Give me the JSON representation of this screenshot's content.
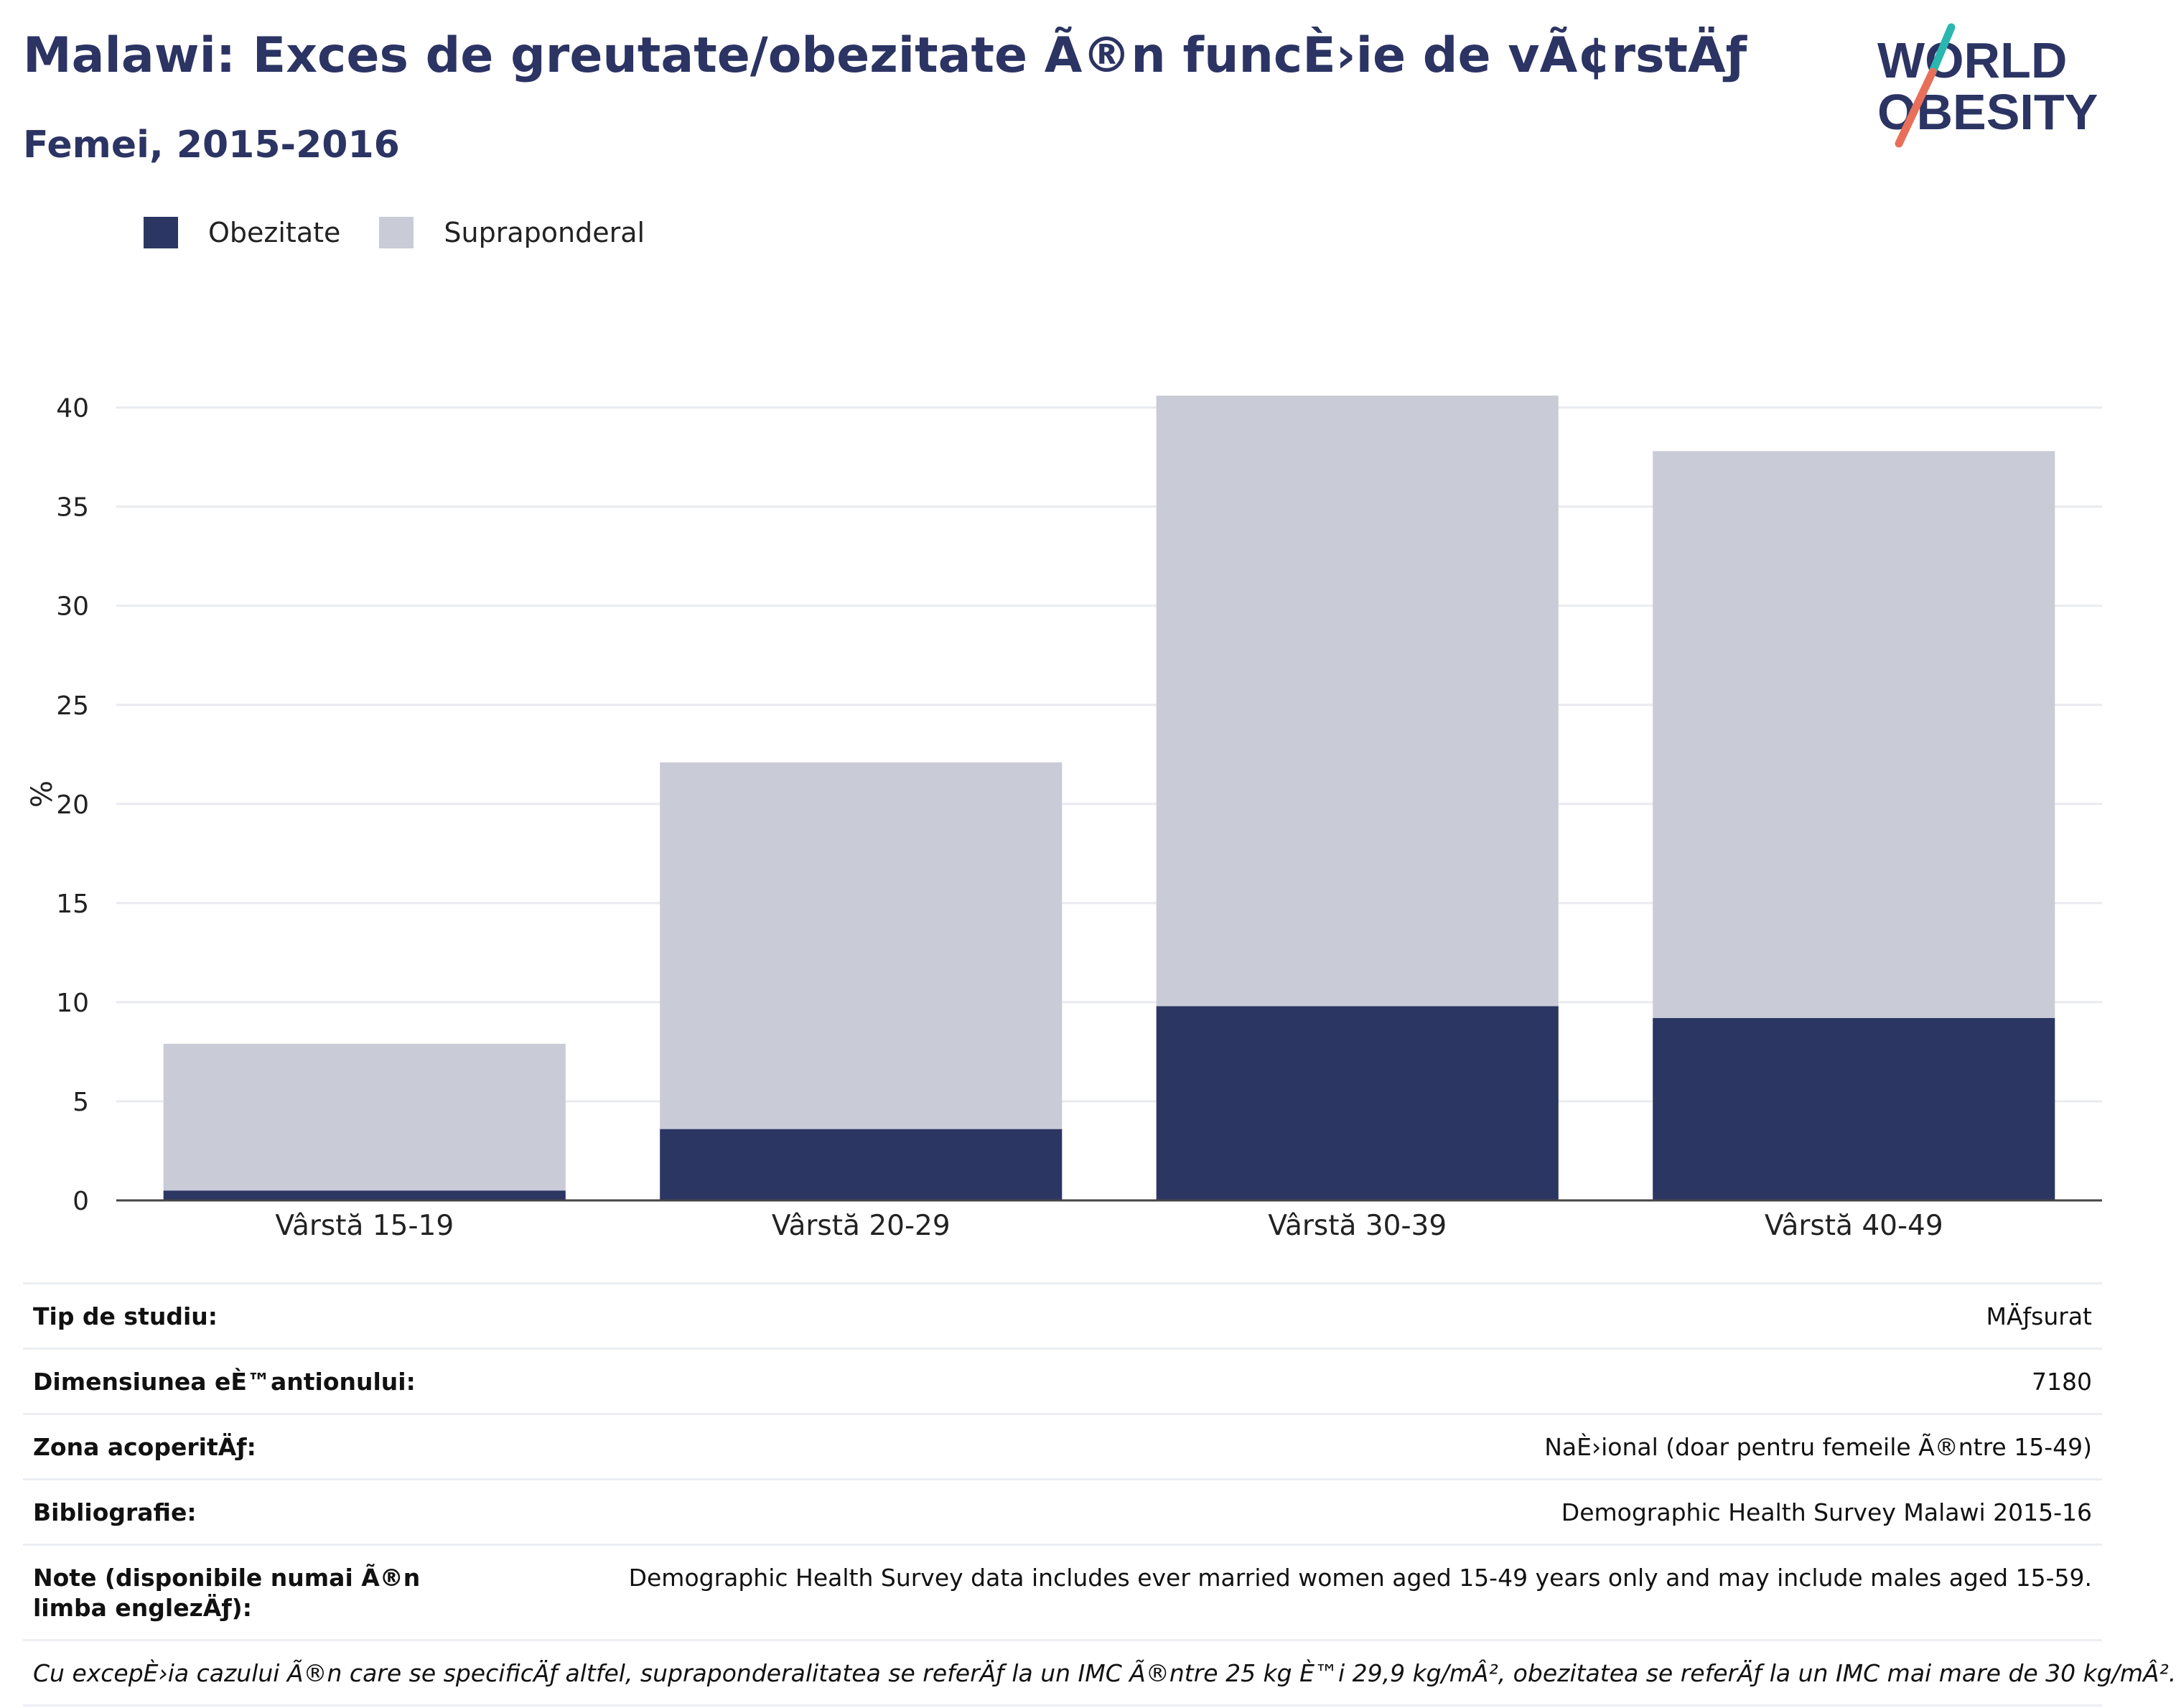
{
  "header": {
    "title": "Malawi: Exces de greutate/obezitate Ã®n funcÈ›ie de vÃ¢rstÄƒ",
    "subtitle": "Femei, 2015-2016"
  },
  "logo": {
    "line1": "WORLD",
    "line2": "OBESITY",
    "accent_colors": [
      "#2ab7b0",
      "#e8705a"
    ]
  },
  "colors": {
    "obesity": "#2b3663",
    "overweight": "#c9ccd7",
    "title": "#2b3463"
  },
  "chart_data": {
    "type": "bar",
    "stacked": true,
    "categories": [
      "Vârstă 15-19",
      "Vârstă 20-29",
      "Vârstă 30-39",
      "Vârstă 40-49"
    ],
    "series": [
      {
        "name": "Obezitate",
        "values": [
          0.5,
          3.6,
          9.8,
          9.2
        ]
      },
      {
        "name": "Supraponderal",
        "values": [
          7.4,
          18.5,
          30.8,
          28.6
        ]
      }
    ],
    "ylabel": "%",
    "ylim": [
      0,
      41
    ],
    "yticks": [
      0,
      5,
      10,
      15,
      20,
      25,
      30,
      35,
      40
    ],
    "grid": true,
    "legend": "top-left"
  },
  "info_rows": [
    {
      "key": "Tip de studiu:",
      "value": "MÄƒsurat"
    },
    {
      "key": "Dimensiunea eÈ™antionului:",
      "value": "7180"
    },
    {
      "key": "Zona acoperitÄƒ:",
      "value": "NaÈ›ional (doar pentru femeile Ã®ntre 15-49)"
    },
    {
      "key": "Bibliografie:",
      "value": "Demographic Health Survey Malawi 2015-16"
    },
    {
      "key": "Note (disponibile numai Ã®n limba englezÄƒ):",
      "value": "Demographic Health Survey data includes ever married women aged 15-49 years only and may include males aged 15-59."
    }
  ],
  "footnote": "Cu excepÈ›ia cazului Ã®n care se specificÄƒ altfel, supraponderalitatea se referÄƒ la un IMC Ã®ntre 25 kg È™i 29,9 kg/mÂ², obezitatea se referÄƒ la un IMC mai mare de 30 kg/mÂ²."
}
